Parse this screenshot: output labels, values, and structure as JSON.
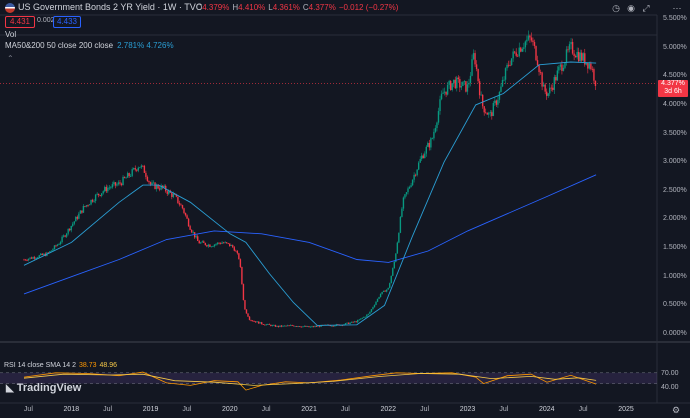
{
  "header": {
    "title": "US Government Bonds 2 YR Yield · 1W · TVC",
    "ohlc": [
      {
        "k": "O",
        "v": "4.379%"
      },
      {
        "k": "H",
        "v": "4.410%"
      },
      {
        "k": "L",
        "v": "4.361%"
      },
      {
        "k": "C",
        "v": "4.377%"
      },
      {
        "k": "",
        "v": "−0.012 (−0.27%)"
      }
    ],
    "bid": "4.431",
    "spread": "0.002",
    "ask": "4.433"
  },
  "indicators": {
    "vol": "Vol",
    "ma_label": "MA50&200 50 close 200 close",
    "ma_values": "2.781%  4.726%"
  },
  "price_axis": {
    "labels": [
      "5.500%",
      "5.000%",
      "4.500%",
      "4.000%",
      "3.500%",
      "3.000%",
      "2.500%",
      "2.000%",
      "1.500%",
      "1.000%",
      "0.500%",
      "0.000%"
    ],
    "price_tag_value": "4.377%",
    "price_tag_countdown": "3d 6h"
  },
  "rsi": {
    "label": "RSI 14 close SMA 14 2",
    "rsi_value": "38.73",
    "sma_value": "48.96",
    "levels": [
      "70.00",
      "40.00"
    ]
  },
  "time_axis": {
    "labels": [
      {
        "t": "Jul",
        "b": false
      },
      {
        "t": "2018",
        "b": true
      },
      {
        "t": "Jul",
        "b": false
      },
      {
        "t": "2019",
        "b": true
      },
      {
        "t": "Jul",
        "b": false
      },
      {
        "t": "2020",
        "b": true
      },
      {
        "t": "Jul",
        "b": false
      },
      {
        "t": "2021",
        "b": true
      },
      {
        "t": "Jul",
        "b": false
      },
      {
        "t": "2022",
        "b": true
      },
      {
        "t": "Jul",
        "b": false
      },
      {
        "t": "2023",
        "b": true
      },
      {
        "t": "Jul",
        "b": false
      },
      {
        "t": "2024",
        "b": true
      },
      {
        "t": "Jul",
        "b": false
      },
      {
        "t": "2025",
        "b": true
      }
    ]
  },
  "branding": {
    "logo": "TradingView"
  },
  "colors": {
    "bg": "#131722",
    "up": "#089981",
    "down": "#f23645",
    "ma50": "#2a9ed4",
    "ma200": "#2962ff",
    "rsi": "#ff9800",
    "rsi_sma": "#f7c948"
  },
  "chart_data": {
    "type": "candlestick",
    "title": "US Government Bonds 2 YR Yield · 1W · TVC",
    "y_unit": "%",
    "ylim": [
      0,
      5.5
    ],
    "xlim": [
      2017.4,
      2025.3
    ],
    "close": [
      [
        2017.4,
        1.3
      ],
      [
        2017.55,
        1.35
      ],
      [
        2017.7,
        1.4
      ],
      [
        2017.85,
        1.6
      ],
      [
        2018.0,
        1.9
      ],
      [
        2018.15,
        2.2
      ],
      [
        2018.3,
        2.4
      ],
      [
        2018.45,
        2.55
      ],
      [
        2018.6,
        2.62
      ],
      [
        2018.75,
        2.8
      ],
      [
        2018.85,
        2.95
      ],
      [
        2018.92,
        2.85
      ],
      [
        2019.0,
        2.6
      ],
      [
        2019.15,
        2.55
      ],
      [
        2019.3,
        2.4
      ],
      [
        2019.4,
        2.2
      ],
      [
        2019.5,
        1.85
      ],
      [
        2019.6,
        1.6
      ],
      [
        2019.75,
        1.55
      ],
      [
        2019.9,
        1.6
      ],
      [
        2020.0,
        1.55
      ],
      [
        2020.05,
        1.5
      ],
      [
        2020.12,
        1.3
      ],
      [
        2020.18,
        0.45
      ],
      [
        2020.25,
        0.25
      ],
      [
        2020.4,
        0.18
      ],
      [
        2020.6,
        0.13
      ],
      [
        2020.8,
        0.15
      ],
      [
        2021.0,
        0.12
      ],
      [
        2021.2,
        0.15
      ],
      [
        2021.4,
        0.16
      ],
      [
        2021.6,
        0.22
      ],
      [
        2021.75,
        0.35
      ],
      [
        2021.9,
        0.7
      ],
      [
        2022.0,
        0.8
      ],
      [
        2022.08,
        1.3
      ],
      [
        2022.18,
        2.3
      ],
      [
        2022.3,
        2.7
      ],
      [
        2022.42,
        3.1
      ],
      [
        2022.55,
        3.4
      ],
      [
        2022.68,
        4.2
      ],
      [
        2022.82,
        4.4
      ],
      [
        2023.0,
        4.3
      ],
      [
        2023.08,
        4.9
      ],
      [
        2023.18,
        4.0
      ],
      [
        2023.28,
        3.8
      ],
      [
        2023.4,
        4.2
      ],
      [
        2023.52,
        4.75
      ],
      [
        2023.62,
        4.95
      ],
      [
        2023.72,
        5.1
      ],
      [
        2023.8,
        5.15
      ],
      [
        2023.88,
        4.8
      ],
      [
        2023.96,
        4.25
      ],
      [
        2024.02,
        4.2
      ],
      [
        2024.15,
        4.6
      ],
      [
        2024.3,
        5.0
      ],
      [
        2024.42,
        4.85
      ],
      [
        2024.55,
        4.7
      ],
      [
        2024.62,
        4.38
      ]
    ],
    "ma50": [
      [
        2017.4,
        1.2
      ],
      [
        2018.0,
        1.6
      ],
      [
        2018.6,
        2.3
      ],
      [
        2018.9,
        2.6
      ],
      [
        2019.1,
        2.6
      ],
      [
        2019.5,
        2.3
      ],
      [
        2020.0,
        1.75
      ],
      [
        2020.2,
        1.6
      ],
      [
        2020.5,
        1.05
      ],
      [
        2020.8,
        0.55
      ],
      [
        2021.1,
        0.15
      ],
      [
        2021.6,
        0.16
      ],
      [
        2021.95,
        0.5
      ],
      [
        2022.3,
        1.7
      ],
      [
        2022.7,
        3.0
      ],
      [
        2023.1,
        4.0
      ],
      [
        2023.45,
        4.2
      ],
      [
        2023.9,
        4.7
      ],
      [
        2024.3,
        4.75
      ],
      [
        2024.62,
        4.73
      ]
    ],
    "ma200": [
      [
        2017.4,
        0.7
      ],
      [
        2018.0,
        1.0
      ],
      [
        2018.6,
        1.3
      ],
      [
        2019.2,
        1.65
      ],
      [
        2019.8,
        1.8
      ],
      [
        2020.4,
        1.75
      ],
      [
        2021.0,
        1.6
      ],
      [
        2021.6,
        1.3
      ],
      [
        2022.0,
        1.25
      ],
      [
        2022.5,
        1.45
      ],
      [
        2023.0,
        1.8
      ],
      [
        2023.5,
        2.1
      ],
      [
        2024.0,
        2.4
      ],
      [
        2024.62,
        2.78
      ]
    ],
    "rsi": [
      [
        2017.4,
        58
      ],
      [
        2017.8,
        70
      ],
      [
        2018.2,
        68
      ],
      [
        2018.6,
        62
      ],
      [
        2018.9,
        72
      ],
      [
        2019.2,
        42
      ],
      [
        2019.5,
        35
      ],
      [
        2019.8,
        48
      ],
      [
        2020.1,
        45
      ],
      [
        2020.2,
        22
      ],
      [
        2020.4,
        35
      ],
      [
        2020.7,
        45
      ],
      [
        2021.0,
        42
      ],
      [
        2021.4,
        50
      ],
      [
        2021.8,
        62
      ],
      [
        2022.1,
        70
      ],
      [
        2022.4,
        68
      ],
      [
        2022.8,
        70
      ],
      [
        2023.1,
        58
      ],
      [
        2023.2,
        40
      ],
      [
        2023.5,
        62
      ],
      [
        2023.8,
        66
      ],
      [
        2024.0,
        44
      ],
      [
        2024.3,
        63
      ],
      [
        2024.62,
        38.73
      ]
    ],
    "rsi_sma": [
      [
        2017.4,
        55
      ],
      [
        2017.9,
        66
      ],
      [
        2018.5,
        64
      ],
      [
        2018.9,
        66
      ],
      [
        2019.3,
        48
      ],
      [
        2019.8,
        44
      ],
      [
        2020.3,
        35
      ],
      [
        2020.8,
        40
      ],
      [
        2021.3,
        46
      ],
      [
        2021.9,
        60
      ],
      [
        2022.4,
        68
      ],
      [
        2022.9,
        66
      ],
      [
        2023.3,
        54
      ],
      [
        2023.8,
        60
      ],
      [
        2024.1,
        52
      ],
      [
        2024.4,
        56
      ],
      [
        2024.62,
        48.96
      ]
    ]
  }
}
